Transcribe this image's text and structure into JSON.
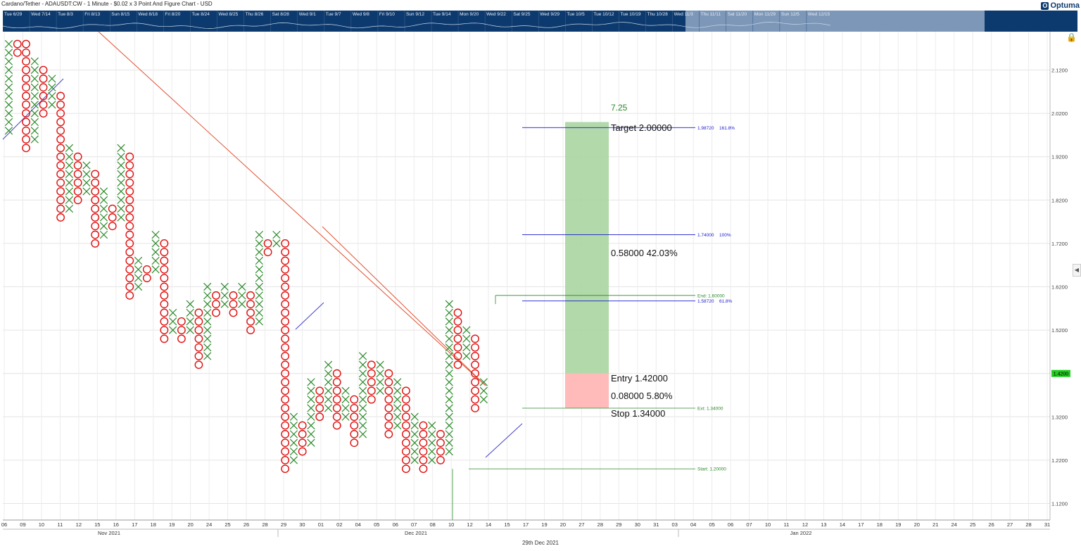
{
  "title": "Cardano/Tether - ADAUSDT:CW - 1 Minute - $0.02 x 3 Point And Figure Chart - USD",
  "brand": "Optuma",
  "icons": {
    "lock": "lock-icon",
    "collapse": "chevron-left-icon"
  },
  "colors": {
    "x_mark": "#2a8a2a",
    "o_mark": "#e01010",
    "fib": "#1a1ad0",
    "target_zone": "#a8d5a0",
    "stop_zone": "#ffb3b3",
    "trend_line": "#e05030",
    "last_price": "#22cc22",
    "navigator": "#0d3a6e"
  },
  "navigator": {
    "labels": [
      "Tue 6/29",
      "Wed 7/14",
      "Tue 8/3",
      "Fri 8/13",
      "Sun 8/15",
      "Wed 8/18",
      "Fri 8/20",
      "Tue 8/24",
      "Wed 8/25",
      "Thu 8/26",
      "Sat 8/28",
      "Wed 9/1",
      "Tue 9/7",
      "Wed 9/8",
      "Fri 9/10",
      "Sun 9/12",
      "Tue 9/14",
      "Mon 9/20",
      "Wed 9/22",
      "Sat 9/25",
      "Wed 9/29",
      "Tue 10/5",
      "Tue 10/12",
      "Tue 10/19",
      "Thu 10/28",
      "Wed 11/3",
      "Thu 11/11",
      "Sat 11/20",
      "Mon 11/29",
      "Sun 12/5",
      "Wed 12/15"
    ]
  },
  "chart_data": {
    "type": "point_and_figure",
    "box_size": 0.02,
    "reversal": 3,
    "ylim": [
      1.08,
      2.18
    ],
    "y_ticks": [
      "2.1200",
      "2.0200",
      "1.9200",
      "1.8200",
      "1.7200",
      "1.6200",
      "1.5200",
      "1.4200",
      "1.3200",
      "1.2200",
      "1.1200"
    ],
    "last_price": "1.4200",
    "x_tick_labels": [
      "06",
      "09",
      "10",
      "11",
      "12",
      "15",
      "16",
      "17",
      "18",
      "19",
      "20",
      "24",
      "25",
      "26",
      "28",
      "29",
      "30",
      "01",
      "02",
      "04",
      "05",
      "06",
      "07",
      "08",
      "10",
      "12",
      "14",
      "15",
      "17",
      "19",
      "20",
      "27",
      "28",
      "29",
      "30",
      "31",
      "03",
      "04",
      "05",
      "06",
      "07",
      "10",
      "11",
      "12",
      "13",
      "14",
      "17",
      "18",
      "19",
      "20",
      "21",
      "24",
      "25",
      "26",
      "27",
      "28",
      "31"
    ],
    "month_labels": [
      "Nov 2021",
      "Dec 2021",
      "Jan 2022"
    ],
    "footer": "29th Dec 2021",
    "columns": [
      {
        "type": "X",
        "low": 1.98,
        "high": 2.18
      },
      {
        "type": "O",
        "low": 2.16,
        "high": 2.18
      },
      {
        "type": "O",
        "low": 1.94,
        "high": 2.18
      },
      {
        "type": "X",
        "low": 1.96,
        "high": 2.14
      },
      {
        "type": "O",
        "low": 2.02,
        "high": 2.12
      },
      {
        "type": "X",
        "low": 2.04,
        "high": 2.1
      },
      {
        "type": "O",
        "low": 1.78,
        "high": 2.06
      },
      {
        "type": "X",
        "low": 1.8,
        "high": 1.94
      },
      {
        "type": "O",
        "low": 1.82,
        "high": 1.92
      },
      {
        "type": "X",
        "low": 1.84,
        "high": 1.9
      },
      {
        "type": "O",
        "low": 1.72,
        "high": 1.88
      },
      {
        "type": "X",
        "low": 1.74,
        "high": 1.84
      },
      {
        "type": "O",
        "low": 1.76,
        "high": 1.8
      },
      {
        "type": "X",
        "low": 1.78,
        "high": 1.94
      },
      {
        "type": "O",
        "low": 1.6,
        "high": 1.92
      },
      {
        "type": "X",
        "low": 1.62,
        "high": 1.68
      },
      {
        "type": "O",
        "low": 1.64,
        "high": 1.66
      },
      {
        "type": "X",
        "low": 1.66,
        "high": 1.74
      },
      {
        "type": "O",
        "low": 1.5,
        "high": 1.72
      },
      {
        "type": "X",
        "low": 1.52,
        "high": 1.56
      },
      {
        "type": "O",
        "low": 1.5,
        "high": 1.54
      },
      {
        "type": "X",
        "low": 1.52,
        "high": 1.58
      },
      {
        "type": "O",
        "low": 1.44,
        "high": 1.56
      },
      {
        "type": "X",
        "low": 1.46,
        "high": 1.62
      },
      {
        "type": "O",
        "low": 1.56,
        "high": 1.6
      },
      {
        "type": "X",
        "low": 1.58,
        "high": 1.62
      },
      {
        "type": "O",
        "low": 1.56,
        "high": 1.6
      },
      {
        "type": "X",
        "low": 1.58,
        "high": 1.62
      },
      {
        "type": "O",
        "low": 1.52,
        "high": 1.6
      },
      {
        "type": "X",
        "low": 1.54,
        "high": 1.74
      },
      {
        "type": "O",
        "low": 1.7,
        "high": 1.72
      },
      {
        "type": "X",
        "low": 1.72,
        "high": 1.74
      },
      {
        "type": "O",
        "low": 1.2,
        "high": 1.72
      },
      {
        "type": "X",
        "low": 1.22,
        "high": 1.32
      },
      {
        "type": "O",
        "low": 1.24,
        "high": 1.3
      },
      {
        "type": "X",
        "low": 1.26,
        "high": 1.4
      },
      {
        "type": "O",
        "low": 1.32,
        "high": 1.38
      },
      {
        "type": "X",
        "low": 1.34,
        "high": 1.44
      },
      {
        "type": "O",
        "low": 1.3,
        "high": 1.42
      },
      {
        "type": "X",
        "low": 1.32,
        "high": 1.38
      },
      {
        "type": "O",
        "low": 1.26,
        "high": 1.36
      },
      {
        "type": "X",
        "low": 1.28,
        "high": 1.46
      },
      {
        "type": "O",
        "low": 1.36,
        "high": 1.44
      },
      {
        "type": "X",
        "low": 1.38,
        "high": 1.44
      },
      {
        "type": "O",
        "low": 1.28,
        "high": 1.42
      },
      {
        "type": "X",
        "low": 1.3,
        "high": 1.4
      },
      {
        "type": "O",
        "low": 1.2,
        "high": 1.38
      },
      {
        "type": "X",
        "low": 1.22,
        "high": 1.32
      },
      {
        "type": "O",
        "low": 1.2,
        "high": 1.3
      },
      {
        "type": "X",
        "low": 1.22,
        "high": 1.3
      },
      {
        "type": "O",
        "low": 1.22,
        "high": 1.28
      },
      {
        "type": "X",
        "low": 1.24,
        "high": 1.58
      },
      {
        "type": "O",
        "low": 1.44,
        "high": 1.56
      },
      {
        "type": "X",
        "low": 1.46,
        "high": 1.52
      },
      {
        "type": "O",
        "low": 1.34,
        "high": 1.5
      },
      {
        "type": "X",
        "low": 1.36,
        "high": 1.4
      }
    ],
    "trade": {
      "target_label": "Target",
      "target": "2.00000",
      "reward": "0.58000",
      "reward_pct": "42.03%",
      "entry_label": "Entry",
      "entry": "1.42000",
      "risk": "0.08000",
      "risk_pct": "5.80%",
      "stop_label": "Stop",
      "stop": "1.34000",
      "ratio": "7.25"
    },
    "levels": [
      {
        "price": 1.9872,
        "price_text": "1.98720",
        "label": "161.8%",
        "kind": "fib"
      },
      {
        "price": 1.74,
        "price_text": "1.74000",
        "label": "100%",
        "kind": "fib"
      },
      {
        "price": 1.5872,
        "price_text": "1.58720",
        "label": "61.8%",
        "kind": "fib"
      },
      {
        "price": 1.6,
        "label": "End: 1.60000",
        "kind": "marker"
      },
      {
        "price": 1.34,
        "label": "Ext: 1.34000",
        "kind": "marker"
      },
      {
        "price": 1.2,
        "label": "Start: 1.20000",
        "kind": "marker"
      }
    ]
  }
}
